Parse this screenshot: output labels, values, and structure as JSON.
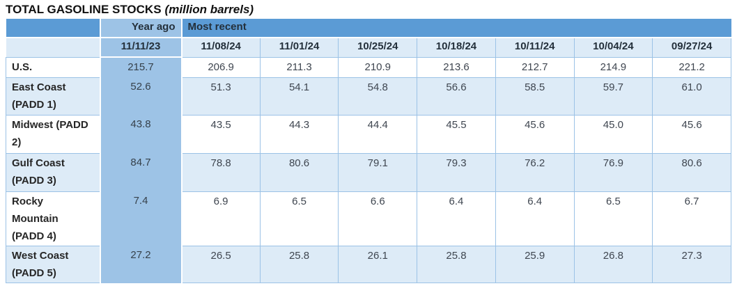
{
  "title": {
    "main": "TOTAL GASOLINE STOCKS",
    "unit": "(million barrels)"
  },
  "colors": {
    "header_blue": "#5B9BD5",
    "year_ago_band_blue": "#9DC3E6",
    "light_row_blue": "#DDEBF7",
    "grid_border_blue": "#9BC2E6",
    "label_text": "#262626",
    "value_text": "#3F4650",
    "title_text": "#111111"
  },
  "chart_data": {
    "type": "table",
    "title": "TOTAL GASOLINE STOCKS",
    "units": "million barrels",
    "column_groups": [
      {
        "label": "Year ago",
        "columns": [
          "11/11/23"
        ]
      },
      {
        "label": "Most recent",
        "columns": [
          "11/08/24",
          "11/01/24",
          "10/25/24",
          "10/18/24",
          "10/11/24",
          "10/04/24",
          "09/27/24"
        ]
      }
    ],
    "rows": [
      {
        "label": "U.S.",
        "year_ago": 215.7,
        "values": [
          206.9,
          211.3,
          210.9,
          213.6,
          212.7,
          214.9,
          221.2
        ]
      },
      {
        "label": "East Coast (PADD 1)",
        "year_ago": 52.6,
        "values": [
          51.3,
          54.1,
          54.8,
          56.6,
          58.5,
          59.7,
          61.0
        ]
      },
      {
        "label": "Midwest (PADD 2)",
        "year_ago": 43.8,
        "values": [
          43.5,
          44.3,
          44.4,
          45.5,
          45.6,
          45.0,
          45.6
        ]
      },
      {
        "label": "Gulf Coast (PADD 3)",
        "year_ago": 84.7,
        "values": [
          78.8,
          80.6,
          79.1,
          79.3,
          76.2,
          76.9,
          80.6
        ]
      },
      {
        "label": "Rocky Mountain (PADD 4)",
        "year_ago": 7.4,
        "values": [
          6.9,
          6.5,
          6.6,
          6.4,
          6.4,
          6.5,
          6.7
        ]
      },
      {
        "label": "West Coast (PADD 5)",
        "year_ago": 27.2,
        "values": [
          26.5,
          25.8,
          26.1,
          25.8,
          25.9,
          26.8,
          27.3
        ]
      }
    ],
    "value_format": "one_decimal",
    "layout": {
      "striped_rows": "alternating starting at row 2",
      "year_ago_column_highlighted": true
    }
  }
}
